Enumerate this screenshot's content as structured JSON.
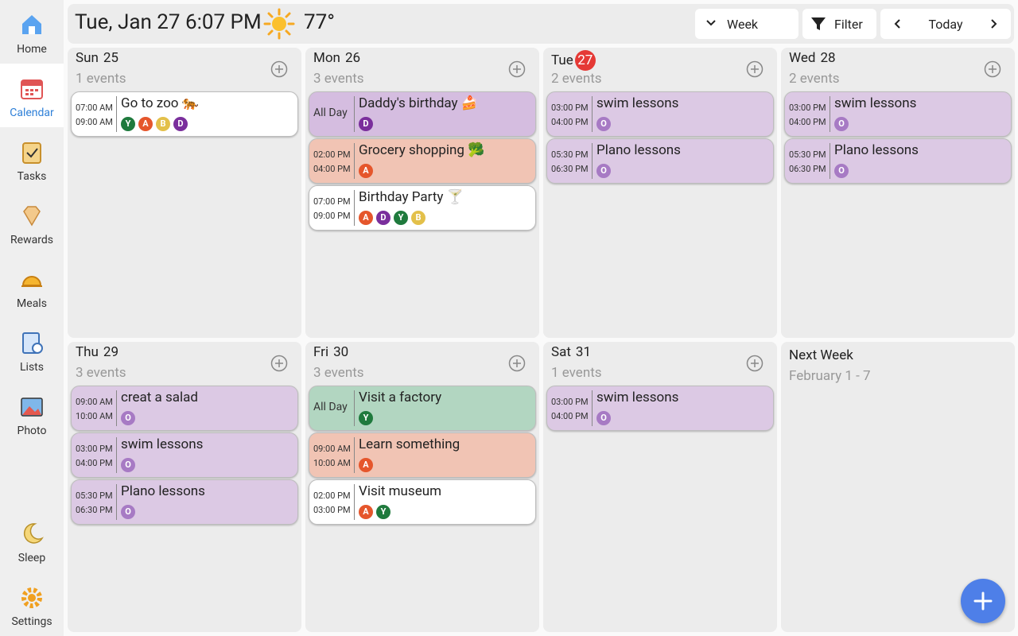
{
  "sidebar": {
    "items": [
      "Home",
      "Calendar",
      "Tasks",
      "Rewards",
      "Meals",
      "Lists",
      "Photo",
      "Sleep",
      "Settings"
    ],
    "selected": 1
  },
  "header": {
    "datetime": "Tue, Jan 27 6:07 PM",
    "temperature": "77°",
    "view": "Week",
    "filter": "Filter",
    "today": "Today"
  },
  "member_colors": {
    "Y": "#1f7a3d",
    "A": "#e5562c",
    "B": "#e3c04a",
    "D": "#7a2f9c",
    "O": "#a77ac4"
  },
  "days": [
    {
      "day": "Sun",
      "date": "25",
      "count": "1 events",
      "events": [
        {
          "start": "07:00 AM",
          "end": "09:00 AM",
          "title": "Go to zoo 🐅",
          "members": [
            "Y",
            "A",
            "B",
            "D"
          ],
          "color": "#ffffff"
        }
      ]
    },
    {
      "day": "Mon",
      "date": "26",
      "count": "3 events",
      "events": [
        {
          "start": "All Day",
          "title": "Daddy's birthday 🍰",
          "members": [
            "D"
          ],
          "color": "#d5bde0"
        },
        {
          "start": "02:00 PM",
          "end": "04:00 PM",
          "title": "Grocery shopping 🥦",
          "members": [
            "A"
          ],
          "color": "#f1c4b4"
        },
        {
          "start": "07:00 PM",
          "end": "09:00 PM",
          "title": "Birthday Party 🍸",
          "members": [
            "A",
            "D",
            "Y",
            "B"
          ],
          "color": "#ffffff"
        }
      ]
    },
    {
      "day": "Tue",
      "date": "27",
      "is_today": true,
      "count": "2 events",
      "events": [
        {
          "start": "03:00 PM",
          "end": "04:00 PM",
          "title": "swim lessons",
          "members": [
            "O"
          ],
          "color": "#dcc9e4"
        },
        {
          "start": "05:30 PM",
          "end": "06:30 PM",
          "title": "Plano lessons",
          "members": [
            "O"
          ],
          "color": "#dcc9e4"
        }
      ]
    },
    {
      "day": "Wed",
      "date": "28",
      "count": "2 events",
      "events": [
        {
          "start": "03:00 PM",
          "end": "04:00 PM",
          "title": "swim lessons",
          "members": [
            "O"
          ],
          "color": "#dcc9e4"
        },
        {
          "start": "05:30 PM",
          "end": "06:30 PM",
          "title": "Plano lessons",
          "members": [
            "O"
          ],
          "color": "#dcc9e4"
        }
      ]
    },
    {
      "day": "Thu",
      "date": "29",
      "count": "3 events",
      "events": [
        {
          "start": "09:00 AM",
          "end": "10:00 AM",
          "title": "creat a salad",
          "members": [
            "O"
          ],
          "color": "#dcc9e4"
        },
        {
          "start": "03:00 PM",
          "end": "04:00 PM",
          "title": "swim lessons",
          "members": [
            "O"
          ],
          "color": "#dcc9e4"
        },
        {
          "start": "05:30 PM",
          "end": "06:30 PM",
          "title": "Plano lessons",
          "members": [
            "O"
          ],
          "color": "#dcc9e4"
        }
      ]
    },
    {
      "day": "Fri",
      "date": "30",
      "count": "3 events",
      "events": [
        {
          "start": "All Day",
          "title": "Visit a factory",
          "members": [
            "Y"
          ],
          "color": "#b2d6c1"
        },
        {
          "start": "09:00 AM",
          "end": "10:00 AM",
          "title": "Learn something",
          "members": [
            "A"
          ],
          "color": "#f1c4b4"
        },
        {
          "start": "02:00 PM",
          "end": "03:00 PM",
          "title": "Visit museum",
          "members": [
            "A",
            "Y"
          ],
          "color": "#ffffff"
        }
      ]
    },
    {
      "day": "Sat",
      "date": "31",
      "count": "1 events",
      "events": [
        {
          "start": "03:00 PM",
          "end": "04:00 PM",
          "title": "swim lessons",
          "members": [
            "O"
          ],
          "color": "#dcc9e4"
        }
      ]
    }
  ],
  "next_week": {
    "title": "Next Week",
    "range": "February 1 - 7"
  }
}
